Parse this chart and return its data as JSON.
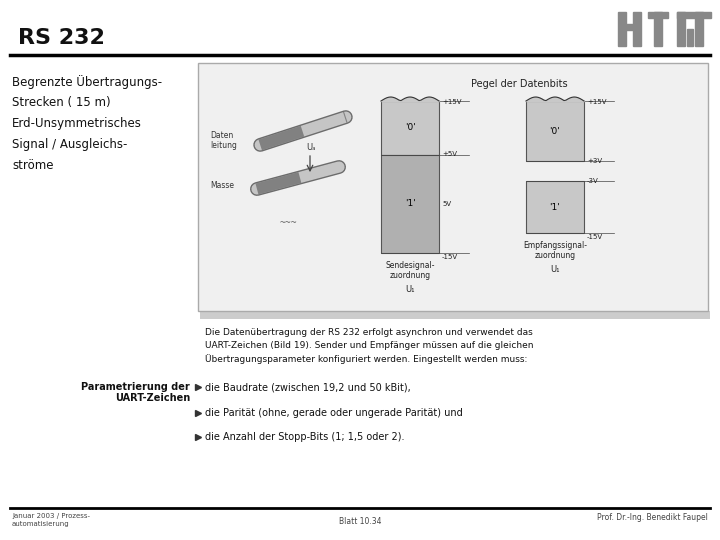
{
  "title": "RS 232",
  "bg_color": "#ffffff",
  "left_text_lines": [
    "Begrenzte Übertragungs-",
    "Strecken ( 15 m)",
    "Erd-Unsymmetrisches",
    "Signal / Ausgleichs-",
    "ströme"
  ],
  "diagram_title": "Pegel der Datenbits",
  "footer_left_line1": "Januar 2003 / Prozess-",
  "footer_left_line2": "automatisierung",
  "footer_center": "Blatt 10.34",
  "footer_right": "Prof. Dr.-Ing. Benedikt Faupel",
  "body_text_lines": [
    "Die Datenübertragung der RS 232 erfolgt asynchron und verwendet das",
    "UART-Zeichen (Bild 19). Sender und Empfänger müssen auf die gleichen",
    "Übertragungsparameter konfiguriert werden. Eingestellt werden muss:"
  ],
  "param_label_line1": "Parametrierung der",
  "param_label_line2": "UART-Zeichen",
  "bullet_items": [
    "die Baudrate (zwischen 19,2 und 50 kBit),",
    "die Parität (ohne, gerade oder ungerade Parität) und",
    "die Anzahl der Stopp-Bits (1; 1,5 oder 2)."
  ],
  "logo_color": "#888888",
  "box_bg": "#f0f0f0",
  "box_edge": "#aaaaaa",
  "gray_light": "#c8c8c8",
  "gray_mid": "#b0b0b0",
  "gray_dark": "#909090",
  "text_color": "#111111",
  "footer_color": "#444444"
}
